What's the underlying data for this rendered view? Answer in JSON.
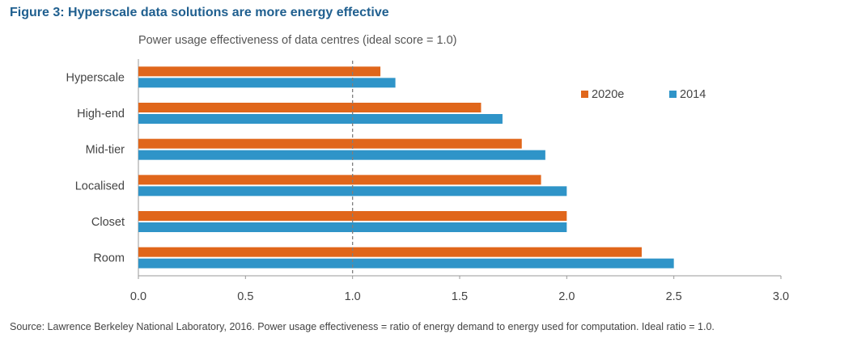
{
  "figure_title": "Figure 3: Hyperscale data solutions are more energy effective",
  "source": "Source: Lawrence Berkeley National Laboratory, 2016. Power usage effectiveness = ratio of energy demand to energy used for computation. Ideal ratio = 1.0.",
  "colors": {
    "series_2020e": "#e0661b",
    "series_2014": "#2f94c8",
    "reference_line": "#7f7f7f",
    "title": "#1f5f8f"
  },
  "chart_data": {
    "type": "bar",
    "orientation": "horizontal",
    "title": "Power usage effectiveness of data centres (ideal score = 1.0)",
    "categories": [
      "Hyperscale",
      "High-end",
      "Mid-tier",
      "Localised",
      "Closet",
      "Room"
    ],
    "series": [
      {
        "name": "2020e",
        "values": [
          1.13,
          1.6,
          1.79,
          1.88,
          2.0,
          2.35
        ]
      },
      {
        "name": "2014",
        "values": [
          1.2,
          1.7,
          1.9,
          2.0,
          2.0,
          2.5
        ]
      }
    ],
    "xlim": [
      0,
      3.0
    ],
    "xticks": [
      "0.0",
      "0.5",
      "1.0",
      "1.5",
      "2.0",
      "2.5",
      "3.0"
    ],
    "reference_line": 1.0,
    "grid": false,
    "legend_position": "top-right"
  }
}
